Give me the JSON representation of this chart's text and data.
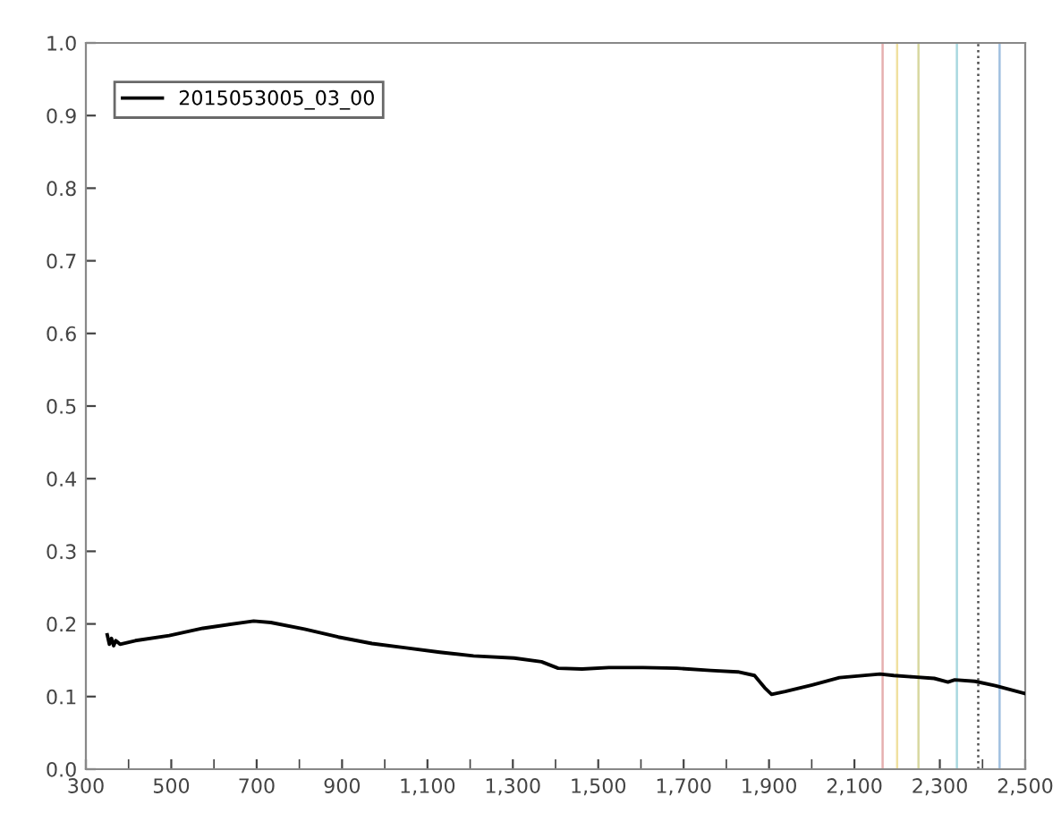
{
  "chart_data": {
    "type": "line",
    "legend": "top left",
    "grid": false,
    "marker": "none",
    "line_style": "solid",
    "x": [
      350,
      355,
      360,
      365,
      370,
      380,
      416,
      495,
      574,
      693,
      733,
      812,
      891,
      970,
      1050,
      1129,
      1208,
      1303,
      1367,
      1406,
      1462,
      1525,
      1605,
      1684,
      1763,
      1827,
      1866,
      1890,
      1906,
      1938,
      2001,
      2065,
      2160,
      2192,
      2240,
      2287,
      2319,
      2335,
      2382,
      2430,
      2500
    ],
    "series": [
      {
        "name": "2015053005_03_00",
        "color": "#000000",
        "values": [
          0.185,
          0.172,
          0.18,
          0.17,
          0.177,
          0.172,
          0.177,
          0.184,
          0.194,
          0.204,
          0.202,
          0.193,
          0.182,
          0.173,
          0.167,
          0.161,
          0.156,
          0.153,
          0.148,
          0.139,
          0.138,
          0.14,
          0.14,
          0.139,
          0.136,
          0.134,
          0.129,
          0.112,
          0.103,
          0.107,
          0.116,
          0.126,
          0.131,
          0.129,
          0.127,
          0.125,
          0.12,
          0.123,
          0.121,
          0.115,
          0.104
        ]
      }
    ],
    "xlim": [
      300,
      2500
    ],
    "ylim": [
      0,
      1.0
    ],
    "xticks": [
      {
        "value": 300,
        "label": "300"
      },
      {
        "value": 500,
        "label": "500"
      },
      {
        "value": 700,
        "label": "700"
      },
      {
        "value": 900,
        "label": "900"
      },
      {
        "value": 1100,
        "label": "1,100"
      },
      {
        "value": 1300,
        "label": "1,300"
      },
      {
        "value": 1500,
        "label": "1,500"
      },
      {
        "value": 1700,
        "label": "1,700"
      },
      {
        "value": 1900,
        "label": "1,900"
      },
      {
        "value": 2100,
        "label": "2,100"
      },
      {
        "value": 2300,
        "label": "2,300"
      },
      {
        "value": 2500,
        "label": "2,500"
      }
    ],
    "yticks": [
      {
        "value": 0,
        "label": "0.0"
      },
      {
        "value": 0.1,
        "label": "0.1"
      },
      {
        "value": 0.2,
        "label": "0.2"
      },
      {
        "value": 0.3,
        "label": "0.3"
      },
      {
        "value": 0.4,
        "label": "0.4"
      },
      {
        "value": 0.5,
        "label": "0.5"
      },
      {
        "value": 0.6,
        "label": "0.6"
      },
      {
        "value": 0.7,
        "label": "0.7"
      },
      {
        "value": 0.8,
        "label": "0.8"
      },
      {
        "value": 0.9,
        "label": "0.9"
      },
      {
        "value": 1.0,
        "label": "1.0"
      }
    ],
    "ref_lines": [
      {
        "axis": "x",
        "value": 2166,
        "color": "#e6b0b0",
        "line_style": "solid"
      },
      {
        "axis": "x",
        "value": 2200,
        "color": "#f0e0a0",
        "line_style": "solid"
      },
      {
        "axis": "x",
        "value": 2250,
        "color": "#d8d8a0",
        "line_style": "solid"
      },
      {
        "axis": "x",
        "value": 2340,
        "color": "#a8d8e0",
        "line_style": "solid"
      },
      {
        "axis": "x",
        "value": 2390,
        "color": "#505050",
        "line_style": "dotted"
      },
      {
        "axis": "x",
        "value": 2440,
        "color": "#a0c0e0",
        "line_style": "solid"
      }
    ]
  }
}
